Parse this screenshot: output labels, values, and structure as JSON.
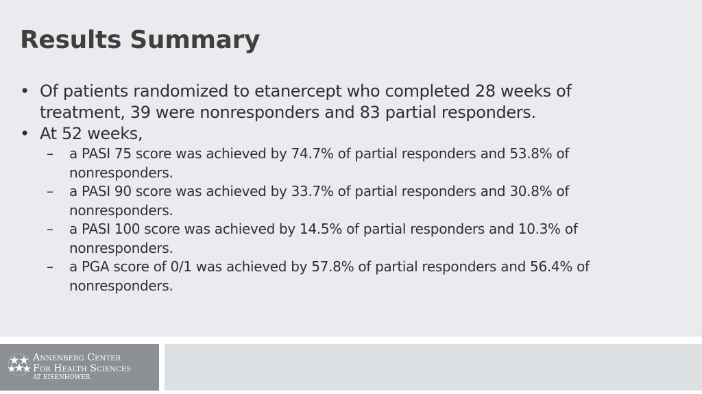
{
  "slide": {
    "title": "Results Summary",
    "bullets": [
      {
        "marker": "•",
        "text": "Of patients randomized to etanercept who completed 28 weeks of treatment, 39 were nonresponders and 83 partial responders."
      },
      {
        "marker": "•",
        "text": "At 52 weeks,",
        "sub_items": [
          {
            "marker": "–",
            "text": "a PASI 75 score was achieved by 74.7% of partial responders and 53.8% of nonresponders."
          },
          {
            "marker": "–",
            "text": "a PASI 90 score was achieved by 33.7% of partial responders and 30.8% of nonresponders."
          },
          {
            "marker": "–",
            "text": "a PASI 100 score was achieved by 14.5% of partial responders and 10.3% of nonresponders."
          },
          {
            "marker": "–",
            "text": "a PGA score of 0/1 was achieved by 57.8% of partial responders and 56.4% of nonresponders."
          }
        ]
      }
    ]
  },
  "footer": {
    "logo": {
      "line1": "Annenberg Center",
      "line2": "For Health Sciences",
      "line3": "at Eisenhower",
      "icon": "stars-cluster-icon"
    }
  },
  "colors": {
    "content_background": "#e9ebee",
    "logo_background": "#8c8f93",
    "footer_bar": "#dde1e4",
    "title_text": "#3f3f3f",
    "body_text": "#2f2f2f"
  }
}
